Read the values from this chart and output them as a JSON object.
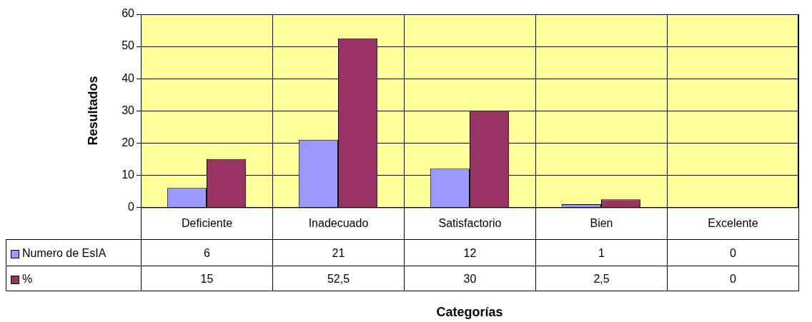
{
  "chart_data": {
    "type": "bar",
    "annotations": [
      "Categorías"
    ],
    "ylabel": "Resultados",
    "categories": [
      "Deficiente",
      "Inadecuado",
      "Satisfactorio",
      "Bien",
      "Excelente"
    ],
    "series": [
      {
        "name": "Numero de EsIA",
        "color": "#9999ff",
        "values": [
          6,
          21,
          12,
          1,
          0
        ],
        "value_labels": [
          "6",
          "21",
          "12",
          "1",
          "0"
        ]
      },
      {
        "name": "%",
        "color": "#993366",
        "values": [
          15,
          52.5,
          30,
          2.5,
          0
        ],
        "value_labels": [
          "15",
          "52,5",
          "30",
          "2,5",
          "0"
        ]
      }
    ],
    "ylim": [
      0,
      60
    ],
    "yticks": [
      0,
      10,
      20,
      30,
      40,
      50,
      60
    ],
    "grid": true,
    "legend": "bottom"
  }
}
